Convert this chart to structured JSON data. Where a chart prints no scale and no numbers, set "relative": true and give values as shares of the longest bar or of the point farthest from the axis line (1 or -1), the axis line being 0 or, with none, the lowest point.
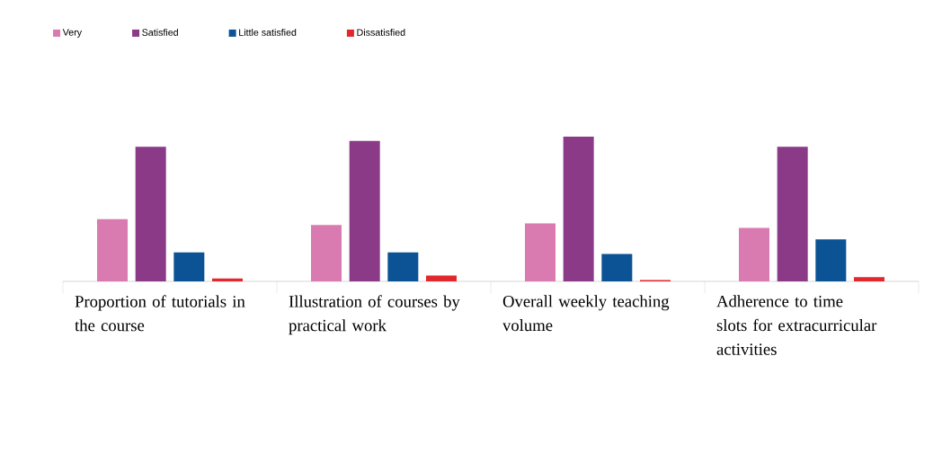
{
  "chart_data": {
    "type": "bar",
    "relative": true,
    "legend": "top left",
    "categories": [
      "Proportion of tutorials in the course",
      "Illustration of courses by practical work",
      "Overall weekly teaching volume",
      "Adherence to time slots for extracurricular activities"
    ],
    "series": [
      {
        "name": "Very",
        "color": "#d97bb0",
        "values": [
          0.43,
          0.39,
          0.4,
          0.37
        ]
      },
      {
        "name": "Satisfied",
        "color": "#8b3a87",
        "values": [
          0.93,
          0.97,
          1.0,
          0.93
        ]
      },
      {
        "name": "Little satisfied",
        "color": "#0b5394",
        "values": [
          0.2,
          0.2,
          0.19,
          0.29
        ]
      },
      {
        "name": "Dissatisfied",
        "color": "#e0282e",
        "values": [
          0.02,
          0.04,
          0.01,
          0.03
        ]
      }
    ]
  }
}
